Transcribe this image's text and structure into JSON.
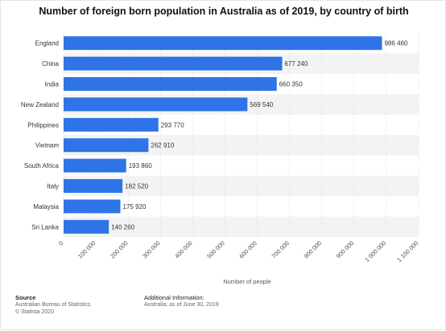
{
  "chart_data": {
    "type": "bar",
    "orientation": "horizontal",
    "title": "Number of foreign born population in Australia as of 2019, by country of birth",
    "categories": [
      "England",
      "China",
      "India",
      "New Zealand",
      "Philippines",
      "Vietnam",
      "South Africa",
      "Italy",
      "Malaysia",
      "Sri Lanka"
    ],
    "values": [
      986460,
      677240,
      660350,
      569540,
      293770,
      262910,
      193860,
      182520,
      175920,
      140260
    ],
    "value_labels": [
      "986 460",
      "677 240",
      "660 350",
      "569 540",
      "293 770",
      "262 910",
      "193 860",
      "182 520",
      "175 920",
      "140 260"
    ],
    "xlabel": "Number of people",
    "ylabel": "",
    "xlim": [
      0,
      1100000
    ],
    "xticks": [
      0,
      100000,
      200000,
      300000,
      400000,
      500000,
      600000,
      700000,
      800000,
      900000,
      1000000,
      1100000
    ],
    "xtick_labels": [
      "0",
      "100 000",
      "200 000",
      "300 000",
      "400 000",
      "500 000",
      "600 000",
      "700 000",
      "800 000",
      "900 000",
      "1 000 000",
      "1 100 000"
    ],
    "grid": true,
    "bar_color": "#2e74e6",
    "stripe_color": "#f3f3f3"
  },
  "footer": {
    "source_heading": "Source",
    "source_lines": [
      "Australian Bureau of Statistics",
      "© Statista 2020"
    ],
    "info_heading": "Additional Information:",
    "info_text": "Australia; as of June 30, 2019"
  }
}
